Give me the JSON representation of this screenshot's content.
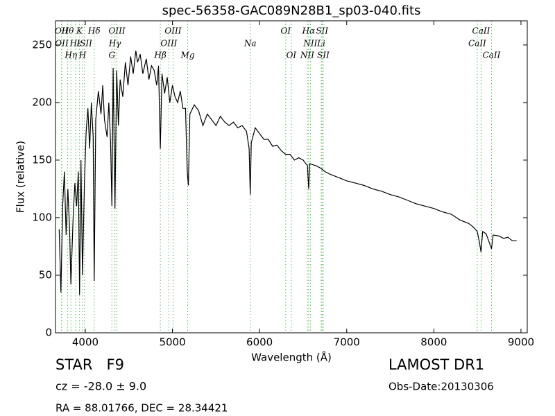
{
  "chart_data": {
    "type": "line",
    "title": "spec-56358-GAC089N28B1_sp03-040.fits",
    "x_label": "Wavelength (Å)",
    "y_label": "Flux (relative)",
    "xlim": [
      3658,
      9072
    ],
    "ylim": [
      0,
      271
    ],
    "xticks": [
      4000,
      5000,
      6000,
      7000,
      8000,
      9000
    ],
    "yticks": [
      0,
      50,
      100,
      150,
      200,
      250
    ],
    "line_color": "#000000",
    "marker_color": "#55bb55",
    "spectral_lines": [
      {
        "label": "Hθ",
        "x": 3798
      },
      {
        "label": "K",
        "x": 3934
      },
      {
        "label": "Hδ",
        "x": 4102
      },
      {
        "label": "OIII",
        "x": 4363
      },
      {
        "label": "OIII",
        "x": 5007
      },
      {
        "label": "OI",
        "x": 6300
      },
      {
        "label": "Hα",
        "x": 6563
      },
      {
        "label": "SII",
        "x": 6717
      },
      {
        "label": "CaII",
        "x": 8542
      },
      {
        "label": "OII",
        "x": 3727
      },
      {
        "label": "Hε",
        "x": 3890
      },
      {
        "label": "ISII",
        "x": 3990
      },
      {
        "label": "Hγ",
        "x": 4340
      },
      {
        "label": "OIII",
        "x": 4959
      },
      {
        "label": "Na",
        "x": 5893
      },
      {
        "label": "NII",
        "x": 6583
      },
      {
        "label": "Li",
        "x": 6708
      },
      {
        "label": "CaII",
        "x": 8498
      },
      {
        "label": "OII",
        "x": 3729
      },
      {
        "label": "Hη",
        "x": 3835
      },
      {
        "label": "H",
        "x": 3968
      },
      {
        "label": "G",
        "x": 4305
      },
      {
        "label": "Hβ",
        "x": 4861
      },
      {
        "label": "Mg",
        "x": 5175
      },
      {
        "label": "OI",
        "x": 6364
      },
      {
        "label": "NII",
        "x": 6548
      },
      {
        "label": "SII",
        "x": 6731
      },
      {
        "label": "CaII",
        "x": 8662
      }
    ],
    "x": [
      3700,
      3720,
      3740,
      3760,
      3780,
      3800,
      3820,
      3835,
      3860,
      3880,
      3900,
      3920,
      3934,
      3950,
      3968,
      3990,
      4010,
      4030,
      4050,
      4070,
      4090,
      4102,
      4120,
      4150,
      4180,
      4200,
      4220,
      4250,
      4270,
      4290,
      4305,
      4320,
      4340,
      4360,
      4380,
      4400,
      4430,
      4460,
      4490,
      4520,
      4550,
      4580,
      4600,
      4630,
      4660,
      4700,
      4730,
      4760,
      4790,
      4820,
      4840,
      4861,
      4880,
      4910,
      4940,
      4970,
      5000,
      5030,
      5060,
      5090,
      5120,
      5150,
      5170,
      5183,
      5200,
      5250,
      5300,
      5350,
      5400,
      5450,
      5500,
      5550,
      5600,
      5650,
      5700,
      5750,
      5800,
      5850,
      5880,
      5893,
      5905,
      5950,
      6000,
      6050,
      6100,
      6150,
      6200,
      6250,
      6300,
      6350,
      6400,
      6450,
      6500,
      6550,
      6563,
      6575,
      6650,
      6700,
      6750,
      6800,
      6900,
      7000,
      7100,
      7200,
      7300,
      7400,
      7500,
      7600,
      7700,
      7800,
      7900,
      8000,
      8100,
      8200,
      8300,
      8400,
      8450,
      8498,
      8520,
      8542,
      8560,
      8600,
      8662,
      8680,
      8750,
      8800,
      8850,
      8900,
      8950
    ],
    "values": [
      90,
      35,
      110,
      140,
      85,
      125,
      90,
      42,
      100,
      130,
      110,
      140,
      33,
      150,
      50,
      130,
      175,
      195,
      160,
      200,
      170,
      45,
      185,
      210,
      190,
      215,
      185,
      170,
      200,
      165,
      110,
      230,
      108,
      228,
      180,
      220,
      205,
      235,
      215,
      240,
      225,
      245,
      235,
      242,
      225,
      238,
      220,
      232,
      228,
      215,
      232,
      160,
      225,
      208,
      222,
      200,
      215,
      205,
      200,
      210,
      195,
      195,
      140,
      128,
      190,
      198,
      193,
      180,
      190,
      185,
      180,
      188,
      183,
      180,
      183,
      178,
      180,
      175,
      160,
      120,
      165,
      178,
      173,
      168,
      168,
      162,
      163,
      158,
      155,
      155,
      150,
      152,
      150,
      145,
      125,
      147,
      145,
      143,
      140,
      138,
      135,
      132,
      130,
      128,
      125,
      123,
      120,
      118,
      115,
      112,
      110,
      108,
      105,
      103,
      98,
      95,
      92,
      88,
      80,
      70,
      88,
      86,
      73,
      85,
      84,
      82,
      83,
      80,
      80
    ],
    "object_class": "STAR   F9",
    "redshift_text": "cz = -28.0 ± 9.0",
    "coords_text": "RA = 88.01766, DEC = 28.34421",
    "survey": "LAMOST DR1",
    "obs_date": "Obs-Date:20130306"
  }
}
